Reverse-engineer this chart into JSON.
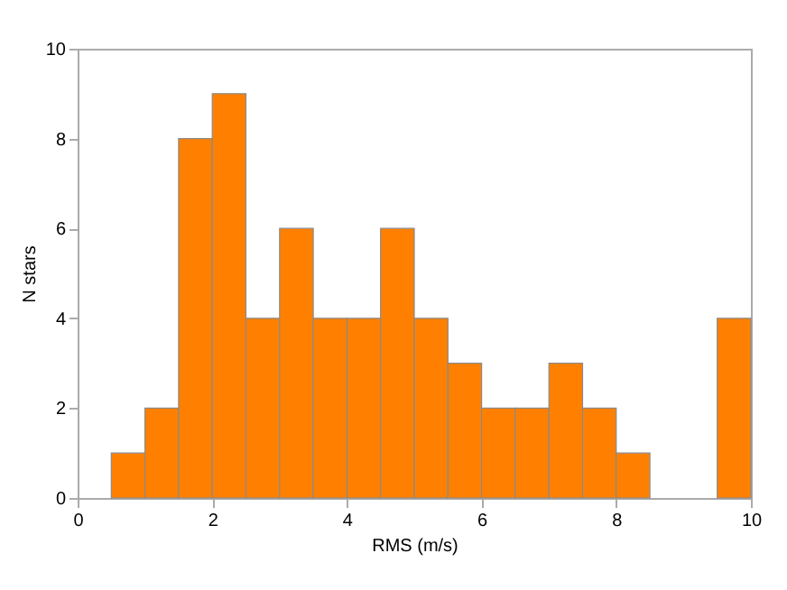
{
  "chart_data": {
    "type": "histogram",
    "xlabel": "RMS (m/s)",
    "ylabel": "N stars",
    "bins": [
      0,
      0.5,
      1,
      1.5,
      2,
      2.5,
      3,
      3.5,
      4,
      4.5,
      5,
      5.5,
      6,
      6.5,
      7,
      7.5,
      8,
      8.5,
      9,
      9.5,
      10
    ],
    "values": [
      0,
      1,
      2,
      8,
      9,
      4,
      6,
      4,
      4,
      6,
      4,
      3,
      2,
      2,
      3,
      2,
      1,
      0,
      0,
      4
    ],
    "color": "#ff8000",
    "xlim": [
      0,
      10
    ],
    "ylim": [
      0,
      10
    ],
    "xticks": [
      0,
      2,
      4,
      6,
      8,
      10
    ],
    "yticks": [
      0,
      2,
      4,
      6,
      8,
      10
    ],
    "grid": false
  }
}
